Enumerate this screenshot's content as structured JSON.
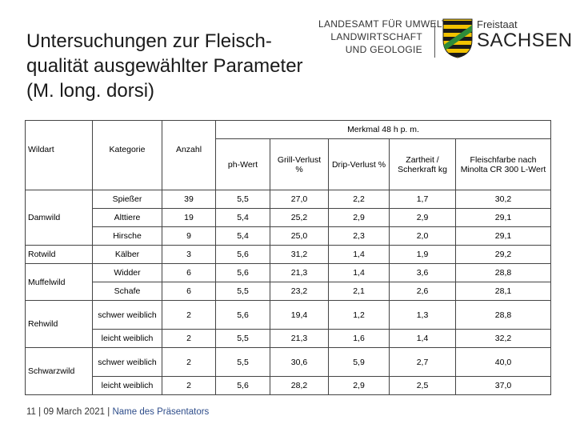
{
  "slide": {
    "title_lines": [
      "Untersuchungen zur Fleisch-",
      "qualität ausgewählter Parameter",
      "(M. long. dorsi)"
    ]
  },
  "logo": {
    "agency_lines": [
      "LANDESAMT FÜR UMWELT",
      "LANDWIRTSCHAFT",
      "UND GEOLOGIE"
    ],
    "state_small": "Freistaat",
    "state_big": "SACHSEN"
  },
  "table": {
    "group_header": "Merkmal 48 h p. m.",
    "headers": {
      "wildart": "Wildart",
      "kategorie": "Kategorie",
      "anzahl": "Anzahl",
      "ph": "ph-Wert",
      "grill": "Grill-Verlust %",
      "drip": "Drip-Verlust %",
      "zartheit": "Zartheit / Scherkraft kg",
      "farbe": "Fleischfarbe nach Minolta CR 300 L-Wert"
    },
    "wildarten": [
      "Damwild",
      "Rotwild",
      "Muffelwild",
      "Rehwild",
      "Schwarzwild"
    ],
    "rows": [
      [
        "Spießer",
        "39",
        "5,5",
        "27,0",
        "2,2",
        "1,7",
        "30,2"
      ],
      [
        "Alttiere",
        "19",
        "5,4",
        "25,2",
        "2,9",
        "2,9",
        "29,1"
      ],
      [
        "Hirsche",
        "9",
        "5,4",
        "25,0",
        "2,3",
        "2,0",
        "29,1"
      ],
      [
        "Kälber",
        "3",
        "5,6",
        "31,2",
        "1,4",
        "1,9",
        "29,2"
      ],
      [
        "Widder",
        "6",
        "5,6",
        "21,3",
        "1,4",
        "3,6",
        "28,8"
      ],
      [
        "Schafe",
        "6",
        "5,5",
        "23,2",
        "2,1",
        "2,6",
        "28,1"
      ],
      [
        "schwer weiblich",
        "2",
        "5,6",
        "19,4",
        "1,2",
        "1,3",
        "28,8"
      ],
      [
        "leicht weiblich",
        "2",
        "5,5",
        "21,3",
        "1,6",
        "1,4",
        "32,2"
      ],
      [
        "schwer weiblich",
        "2",
        "5,5",
        "30,6",
        "5,9",
        "2,7",
        "40,0"
      ],
      [
        "leicht weiblich",
        "2",
        "5,6",
        "28,2",
        "2,9",
        "2,5",
        "37,0"
      ]
    ]
  },
  "footer": {
    "page": "11",
    "sep1": "|",
    "date": "09 March 2021",
    "sep2": "|",
    "presenter": "Name des Präsentators"
  },
  "colors": {
    "presenter_link": "#2e4d8a",
    "coa_yellow": "#f2c200",
    "coa_black": "#1a1a1a",
    "coa_green": "#2e8b3a"
  }
}
